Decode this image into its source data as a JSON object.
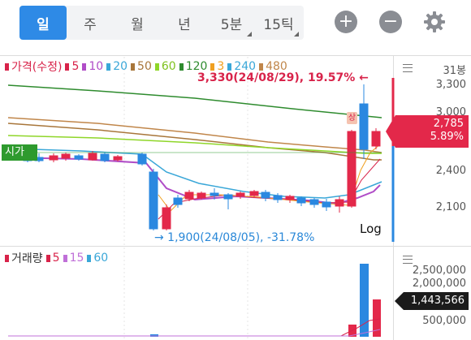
{
  "toolbar": {
    "tabs": [
      {
        "label": "일",
        "active": true
      },
      {
        "label": "주",
        "active": false
      },
      {
        "label": "월",
        "active": false
      },
      {
        "label": "년",
        "active": false
      },
      {
        "label": "5분",
        "active": false
      },
      {
        "label": "15틱",
        "active": false
      }
    ],
    "zoom_in_icon": "plus-circle-icon",
    "zoom_out_icon": "minus-circle-icon",
    "settings_icon": "gear-icon"
  },
  "price_pane": {
    "legend": [
      {
        "label": "가격(수정)",
        "color": "#d8234a"
      },
      {
        "label": "5",
        "color": "#d8234a"
      },
      {
        "label": "10",
        "color": "#b04dc7"
      },
      {
        "label": "20",
        "color": "#3aa7d8"
      },
      {
        "label": "50",
        "color": "#a8763a"
      },
      {
        "label": "60",
        "color": "#8fd629"
      },
      {
        "label": "120",
        "color": "#2e8b2e"
      },
      {
        "label": "3",
        "color": "#f0a020"
      },
      {
        "label": "240",
        "color": "#3aa7d8"
      },
      {
        "label": "480",
        "color": "#c0864a"
      }
    ],
    "axis_header": "31봉",
    "axis_labels": [
      "3,300",
      "3,000",
      "2,400",
      "2,100"
    ],
    "current_price": "2,785",
    "current_change": "5.89%",
    "open_label": "시가",
    "high_annotation": "3,330(24/08/29), 19.57% ←",
    "low_annotation": "→ 1,900(24/08/05), -31.78%",
    "scale_label": "Log",
    "limit_badge": "상",
    "colors": {
      "up": "#e3284a",
      "down": "#2a88e0",
      "tag": "#e3284a"
    }
  },
  "volume_pane": {
    "legend": [
      {
        "label": "거래량",
        "color": "#d8234a"
      },
      {
        "label": "5",
        "color": "#d8234a"
      },
      {
        "label": "15",
        "color": "#c070d8"
      },
      {
        "label": "60",
        "color": "#3aa7d8"
      }
    ],
    "axis_labels": [
      "2,500,000",
      "2,000,000",
      "500,000"
    ],
    "current_volume": "1,443,566"
  }
}
